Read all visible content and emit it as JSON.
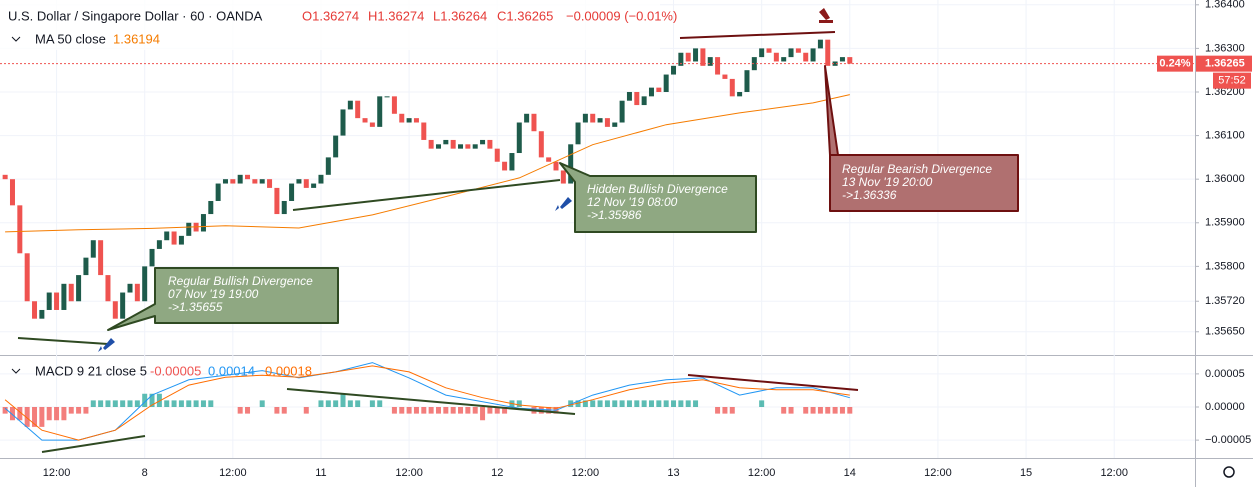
{
  "header": {
    "symbol": "U.S. Dollar / Singapore Dollar · 60 · OANDA",
    "open": "O1.36274",
    "high": "H1.36274",
    "low": "L1.36264",
    "close": "C1.36265",
    "change": "−0.00009 (−0.01%)"
  },
  "chart_data": [
    {
      "type": "candlestick",
      "open": 1.3601,
      "close": [
        1.36,
        1.3594,
        1.3583,
        1.3572,
        1.3568,
        1.357,
        1.3574,
        1.357,
        1.3576,
        1.3572,
        1.3578,
        1.3582,
        1.3586,
        1.3578,
        1.3572,
        1.3568,
        1.3574,
        1.3576,
        1.3572,
        1.358,
        1.3584,
        1.3586,
        1.3588,
        1.3585,
        1.3587,
        1.359,
        1.3588,
        1.3592,
        1.3595,
        1.3599,
        1.36,
        1.3599,
        1.3601,
        1.36,
        1.3599,
        1.36,
        1.3598,
        1.3592,
        1.3595,
        1.3599,
        1.36,
        1.3598,
        1.3599,
        1.3601,
        1.3605,
        1.361,
        1.3616,
        1.3618,
        1.3614,
        1.3613,
        1.3612,
        1.3619,
        1.3619,
        1.3615,
        1.3613,
        1.3614,
        1.3613,
        1.3609,
        1.3607,
        1.3608,
        1.3609,
        1.3607,
        1.3608,
        1.3607,
        1.3608,
        1.3609,
        1.3607,
        1.3604,
        1.3602,
        1.3606,
        1.3613,
        1.3615,
        1.3611,
        1.3605,
        1.3604,
        1.3602,
        1.3599,
        1.3608,
        1.3613,
        1.3615,
        1.3613,
        1.3614,
        1.3612,
        1.3613,
        1.3618,
        1.362,
        1.3617,
        1.3619,
        1.3621,
        1.362,
        1.3624,
        1.3626,
        1.3629,
        1.3627,
        1.363,
        1.3626,
        1.3628,
        1.3624,
        1.3623,
        1.3619,
        1.362,
        1.3625,
        1.3628,
        1.363,
        1.3629,
        1.3627,
        1.3628,
        1.363,
        1.3629,
        1.3627,
        1.363,
        1.3632,
        1.3626,
        1.3627,
        1.3628,
        1.36265
      ],
      "up_color": "#1e5b4b",
      "down_color": "#ef5350",
      "ma": {
        "name": "MA 50 close",
        "legend_value": 1.36194,
        "color": "#f57c00",
        "x": [
          0,
          10,
          20,
          30,
          40,
          50,
          60,
          70,
          80,
          90,
          100,
          110,
          115
        ],
        "values": [
          1.35879,
          1.35884,
          1.35887,
          1.35893,
          1.35888,
          1.35918,
          1.3596,
          1.36003,
          1.36079,
          1.36125,
          1.36152,
          1.36175,
          1.36194
        ]
      },
      "last_price": 1.36265,
      "change_badge": "0.24%",
      "countdown": "57:52",
      "ylim": [
        1.35599,
        1.36411
      ],
      "yticks": [
        {
          "value": 1.364,
          "label": "1.36400"
        },
        {
          "value": 1.363,
          "label": "1.36300"
        },
        {
          "value": 1.362,
          "label": "1.36200"
        },
        {
          "value": 1.361,
          "label": "1.36100"
        },
        {
          "value": 1.36,
          "label": "1.36000"
        },
        {
          "value": 1.359,
          "label": "1.35900"
        },
        {
          "value": 1.358,
          "label": "1.35800"
        },
        {
          "value": 1.3572,
          "label": "1.35720"
        },
        {
          "value": 1.3565,
          "label": "1.35650"
        }
      ],
      "xlim": [
        -0.7,
        162
      ],
      "xticks": [
        {
          "value": 7,
          "label": "12:00"
        },
        {
          "value": 19,
          "label": "8"
        },
        {
          "value": 31,
          "label": "12:00"
        },
        {
          "value": 43,
          "label": "11"
        },
        {
          "value": 55,
          "label": "12:00"
        },
        {
          "value": 67,
          "label": "12"
        },
        {
          "value": 79,
          "label": "12:00"
        },
        {
          "value": 91,
          "label": "13"
        },
        {
          "value": 103,
          "label": "12:00"
        },
        {
          "value": 115,
          "label": "14"
        },
        {
          "value": 127,
          "label": "12:00"
        },
        {
          "value": 139,
          "label": "15"
        },
        {
          "value": 151,
          "label": "12:00"
        }
      ],
      "annotations": [
        {
          "title": "Regular Bullish Divergence",
          "time": "07 Nov '19 19:00",
          "price": "->1.35655"
        },
        {
          "title": "Hidden Bullish Divergence",
          "time": "12 Nov '19 08:00",
          "price": "->1.35986"
        },
        {
          "title": "Regular Bearish Divergence",
          "time": "13 Nov '19 20:00",
          "price": "->1.36336"
        }
      ]
    },
    {
      "type": "macd",
      "name": "MACD 9 21 close 5",
      "legend_values": [
        -5e-05,
        0.00014,
        0.00018
      ],
      "histogram": {
        "pos_color": "#26a69a",
        "neg_color": "#ef5350",
        "values": [
          -1e-05,
          -2e-05,
          -2e-05,
          -3e-05,
          -3e-05,
          -3e-05,
          -2e-05,
          -2e-05,
          -2e-05,
          -1e-05,
          -1e-05,
          -1e-05,
          1e-05,
          1e-05,
          1e-05,
          1e-05,
          1e-05,
          1e-05,
          1e-05,
          2e-05,
          2e-05,
          2e-05,
          1e-05,
          1e-05,
          1e-05,
          1e-05,
          1e-05,
          1e-05,
          1e-05,
          0,
          0,
          0,
          -1e-05,
          -1e-05,
          0,
          1e-05,
          0,
          -1e-05,
          -1e-05,
          0,
          0,
          -1e-05,
          0,
          1e-05,
          1e-05,
          1e-05,
          2e-05,
          1e-05,
          1e-05,
          0,
          1e-05,
          1e-05,
          0,
          -1e-05,
          -1e-05,
          -1e-05,
          -1e-05,
          -1e-05,
          -1e-05,
          -1e-05,
          -1e-05,
          -1e-05,
          -1e-05,
          -1e-05,
          -1e-05,
          -2e-05,
          -1e-05,
          -1e-05,
          -1e-05,
          1e-05,
          1e-05,
          0,
          -1e-05,
          -1e-05,
          -1e-05,
          -1e-05,
          0,
          1e-05,
          1e-05,
          1e-05,
          1e-05,
          1e-05,
          1e-05,
          1e-05,
          1e-05,
          1e-05,
          1e-05,
          1e-05,
          1e-05,
          1e-05,
          1e-05,
          1e-05,
          1e-05,
          1e-05,
          1e-05,
          0,
          0,
          -1e-05,
          -1e-05,
          -1e-05,
          0,
          0,
          0,
          1e-05,
          0,
          0,
          -1e-05,
          -1e-05,
          0,
          -1e-05,
          -1e-05,
          -1e-05,
          -1e-05,
          -1e-05,
          -1e-05,
          -1e-05
        ]
      },
      "series": [
        {
          "color": "#2196f3",
          "x": [
            0,
            5,
            10,
            15,
            20,
            25,
            30,
            35,
            40,
            45,
            50,
            55,
            60,
            65,
            70,
            75,
            80,
            85,
            90,
            95,
            100,
            105,
            110,
            115
          ],
          "values": [
            -2e-06,
            -5e-05,
            -5e-05,
            -3.5e-05,
            1.8e-05,
            4.1e-05,
            4.8e-05,
            5.5e-05,
            4.4e-05,
            5.3e-05,
            6.7e-05,
            4.4e-05,
            1.8e-05,
            8e-06,
            -2e-06,
            -5e-06,
            1.8e-05,
            3.3e-05,
            4.1e-05,
            4.4e-05,
            1.8e-05,
            2.9e-05,
            2.9e-05,
            1.4e-05
          ]
        },
        {
          "color": "#ff6d00",
          "x": [
            0,
            5,
            10,
            15,
            20,
            25,
            30,
            35,
            40,
            45,
            50,
            55,
            60,
            65,
            70,
            75,
            80,
            85,
            90,
            95,
            100,
            105,
            110,
            115
          ],
          "values": [
            1.1e-05,
            -3.5e-05,
            -5e-05,
            -3.5e-05,
            3e-06,
            3.3e-05,
            4.5e-05,
            4.8e-05,
            4.5e-05,
            5.3e-05,
            6.2e-05,
            5.3e-05,
            2.9e-05,
            1.4e-05,
            3e-06,
            -2e-06,
            1.1e-05,
            2.6e-05,
            3.6e-05,
            4.1e-05,
            2.9e-05,
            2.6e-05,
            2.6e-05,
            1.8e-05
          ]
        }
      ],
      "ylim": [
        -7.7e-05,
        7.7e-05
      ],
      "yticks": [
        {
          "value": 5e-05,
          "label": "0.00005"
        },
        {
          "value": 0,
          "label": "0.00000"
        },
        {
          "value": -5e-05,
          "label": "−0.00005"
        }
      ]
    }
  ]
}
